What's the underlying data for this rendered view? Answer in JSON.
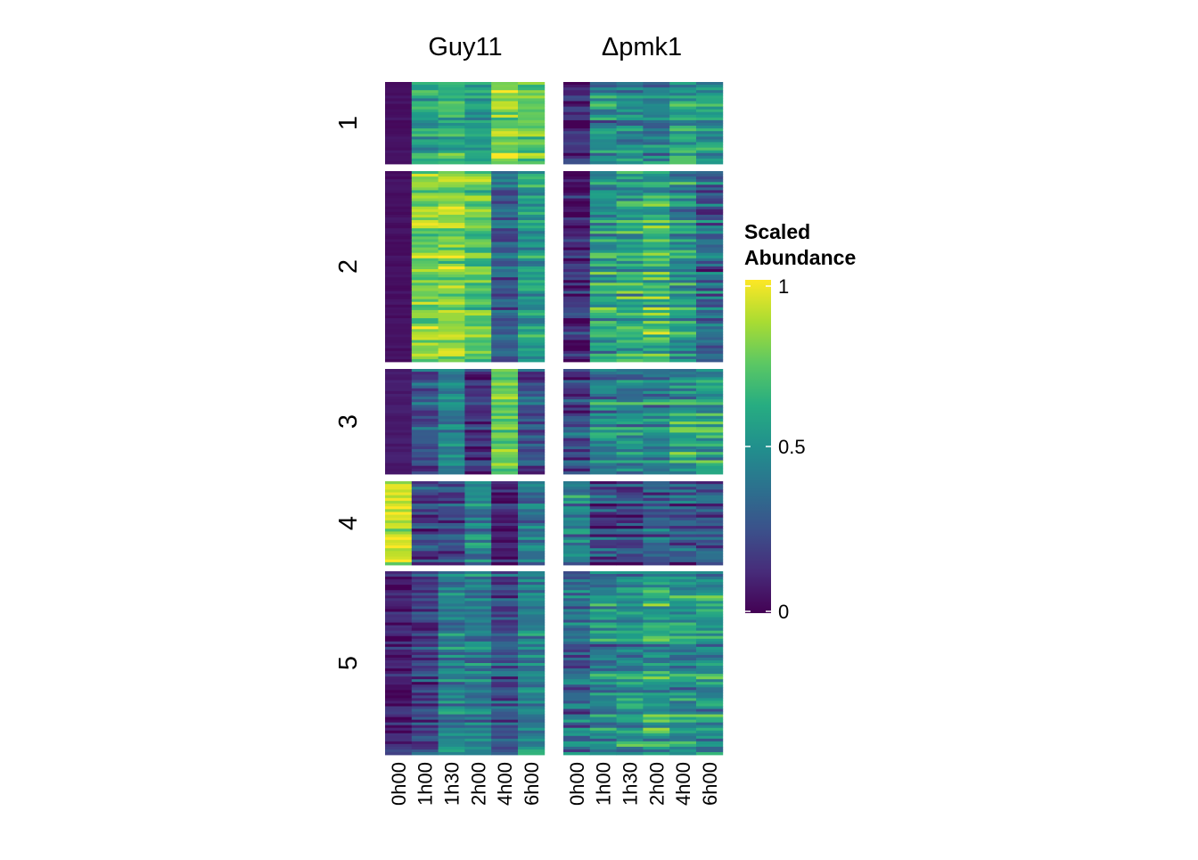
{
  "chart_data": {
    "type": "heatmap",
    "columns": [
      "0h00",
      "1h00",
      "1h30",
      "2h00",
      "4h00",
      "6h00"
    ],
    "panels": [
      {
        "name": "Guy11"
      },
      {
        "name": "Δpmk1"
      }
    ],
    "clusters": [
      {
        "label": "1",
        "rows": 30
      },
      {
        "label": "2",
        "rows": 70
      },
      {
        "label": "3",
        "rows": 38
      },
      {
        "label": "4",
        "rows": 30
      },
      {
        "label": "5",
        "rows": 68
      }
    ],
    "cluster_means": {
      "Guy11": [
        [
          0.02,
          0.55,
          0.62,
          0.55,
          0.8,
          0.72
        ],
        [
          0.02,
          0.8,
          0.82,
          0.72,
          0.3,
          0.55
        ],
        [
          0.05,
          0.25,
          0.45,
          0.15,
          0.78,
          0.25
        ],
        [
          0.92,
          0.2,
          0.2,
          0.45,
          0.1,
          0.35
        ],
        [
          0.08,
          0.2,
          0.45,
          0.42,
          0.25,
          0.45
        ]
      ],
      "Δpmk1": [
        [
          0.1,
          0.45,
          0.45,
          0.4,
          0.55,
          0.5
        ],
        [
          0.1,
          0.55,
          0.6,
          0.65,
          0.5,
          0.3
        ],
        [
          0.2,
          0.45,
          0.45,
          0.45,
          0.55,
          0.55
        ],
        [
          0.4,
          0.2,
          0.2,
          0.25,
          0.25,
          0.25
        ],
        [
          0.35,
          0.45,
          0.5,
          0.55,
          0.5,
          0.5
        ]
      ]
    },
    "legend": {
      "title": [
        "Scaled",
        "Abundance"
      ],
      "ticks": [
        "0",
        "0.5",
        "1"
      ],
      "range": [
        0,
        1
      ],
      "colormap": "viridis",
      "placement": "right"
    }
  },
  "colors": {
    "low": "#440154",
    "mid": "#21918c",
    "high": "#fde725"
  }
}
